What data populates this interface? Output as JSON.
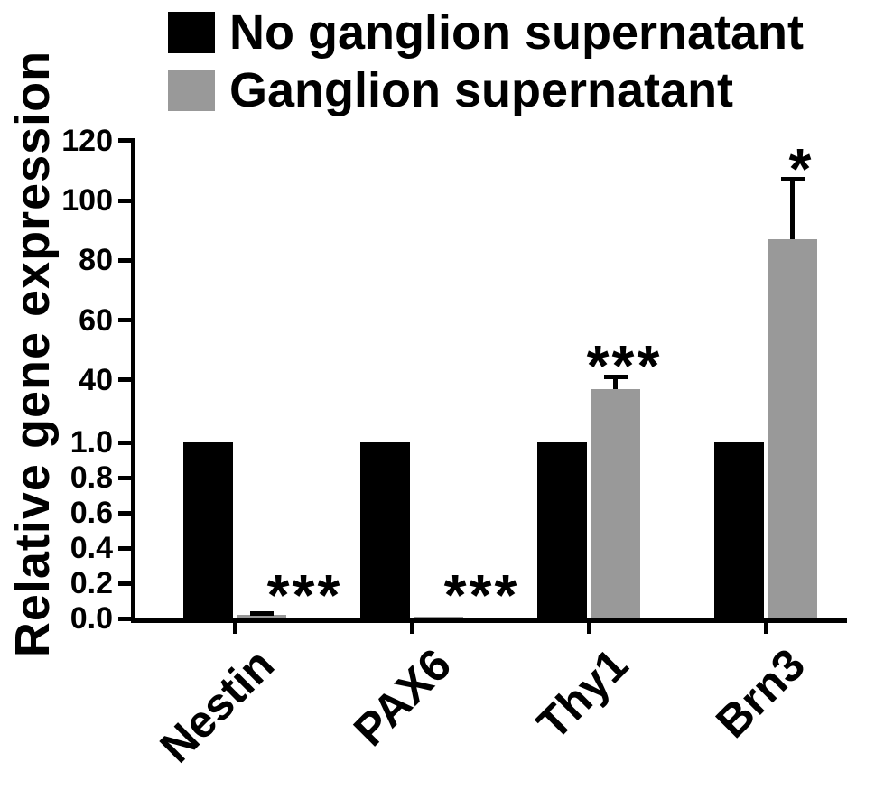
{
  "legend": {
    "items": [
      {
        "label": "No ganglion supernatant",
        "color": "#000000"
      },
      {
        "label": "Ganglion supernatant",
        "color": "#999999"
      }
    ]
  },
  "chart_data": {
    "type": "bar",
    "title": "",
    "ylabel": "Relative gene expression",
    "xlabel": "",
    "categories": [
      "Nestin",
      "PAX6",
      "Thy1",
      "Brn3"
    ],
    "series": [
      {
        "name": "No ganglion supernatant",
        "color": "#000000",
        "values": [
          1.0,
          1.0,
          1.0,
          1.0
        ],
        "errors": [
          0,
          0,
          0,
          0
        ]
      },
      {
        "name": "Ganglion supernatant",
        "color": "#999999",
        "values": [
          0.02,
          0.01,
          37,
          87
        ],
        "errors": [
          0.01,
          0,
          4,
          20
        ]
      }
    ],
    "annotations": [
      {
        "category": "Nestin",
        "text": "***"
      },
      {
        "category": "PAX6",
        "text": "***"
      },
      {
        "category": "Thy1",
        "text": "***"
      },
      {
        "category": "Brn3",
        "text": "*"
      }
    ],
    "axis_break": {
      "lower_range": [
        0,
        1.0
      ],
      "lower_ticks": [
        0.0,
        0.2,
        0.4,
        0.6,
        0.8,
        1.0
      ],
      "upper_range": [
        20,
        120
      ],
      "upper_ticks": [
        40,
        60,
        80,
        100,
        120
      ]
    },
    "grid": false,
    "legend_position": "top"
  }
}
